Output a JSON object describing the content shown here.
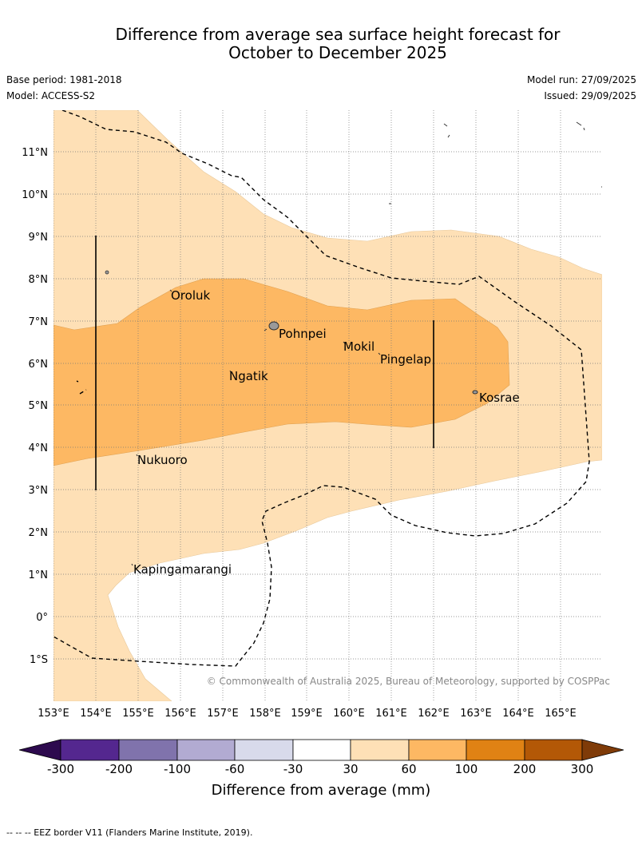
{
  "title": {
    "line1": "Difference from average sea surface height forecast for",
    "line2": "October to December 2025"
  },
  "meta": {
    "base_period": "Base period: 1981-2018",
    "model": "Model: ACCESS-S2",
    "model_run": "Model run: 27/09/2025",
    "issued": "Issued: 29/09/2025"
  },
  "axes": {
    "lat_labels": [
      "11°N",
      "10°N",
      "9°N",
      "8°N",
      "7°N",
      "6°N",
      "5°N",
      "4°N",
      "3°N",
      "2°N",
      "1°N",
      "0°",
      "1°S"
    ],
    "lon_labels": [
      "153°E",
      "154°E",
      "155°E",
      "156°E",
      "157°E",
      "158°E",
      "159°E",
      "160°E",
      "161°E",
      "162°E",
      "163°E",
      "164°E",
      "165°E"
    ]
  },
  "places": {
    "oroluk": "Oroluk",
    "pohnpei": "Pohnpei",
    "mokil": "Mokil",
    "pingelap": "Pingelap",
    "ngatik": "Ngatik",
    "kosrae": "Kosrae",
    "nukuoro": "Nukuoro",
    "kapingamarangi": "Kapingamarangi"
  },
  "copyright": "© Commonwealth of Australia 2025, Bureau of Meteorology, supported by COSPPac",
  "colorbar": {
    "title": "Difference from average (mm)",
    "ticks": [
      "-300",
      "-200",
      "-100",
      "-60",
      "-30",
      "30",
      "60",
      "100",
      "200",
      "300"
    ],
    "colors": {
      "below_min": "#2d0a4e",
      "n300_n200": "#54278f",
      "n200_n100": "#8073ac",
      "n100_n60": "#b2abd2",
      "n60_n30": "#d8daeb",
      "n30_30": "#ffffff",
      "p30_60": "#fee0b6",
      "p60_100": "#fdb863",
      "p100_200": "#e08214",
      "p200_300": "#b35806",
      "above_max": "#7f3b08"
    }
  },
  "footer": "--  --  -- EEZ border V11 (Flanders Marine Institute, 2019)."
}
